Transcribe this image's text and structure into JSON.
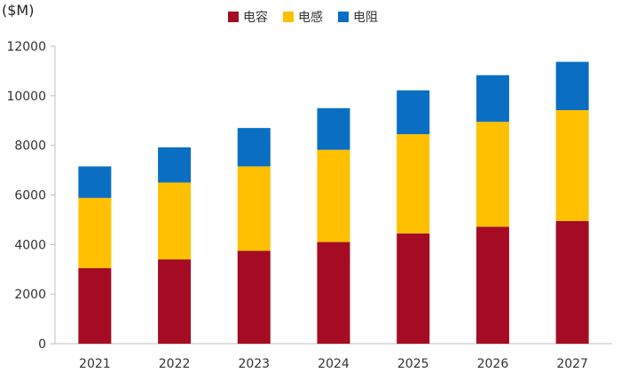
{
  "chart_data": {
    "type": "bar",
    "stacked": true,
    "unit_label": "($M)",
    "categories": [
      "2021",
      "2022",
      "2023",
      "2024",
      "2025",
      "2026",
      "2027"
    ],
    "series": [
      {
        "name": "电容",
        "color": "#A50B23",
        "values": [
          3050,
          3400,
          3750,
          4100,
          4450,
          4720,
          4950
        ]
      },
      {
        "name": "电感",
        "color": "#FFC000",
        "values": [
          2830,
          3100,
          3400,
          3720,
          4000,
          4230,
          4470
        ]
      },
      {
        "name": "电阻",
        "color": "#0A6FC2",
        "values": [
          1270,
          1420,
          1550,
          1680,
          1770,
          1880,
          1950
        ]
      }
    ],
    "ylim": [
      0,
      12000
    ],
    "yticks": [
      0,
      2000,
      4000,
      6000,
      8000,
      10000,
      12000
    ],
    "grid": false,
    "legend": "top-center"
  }
}
